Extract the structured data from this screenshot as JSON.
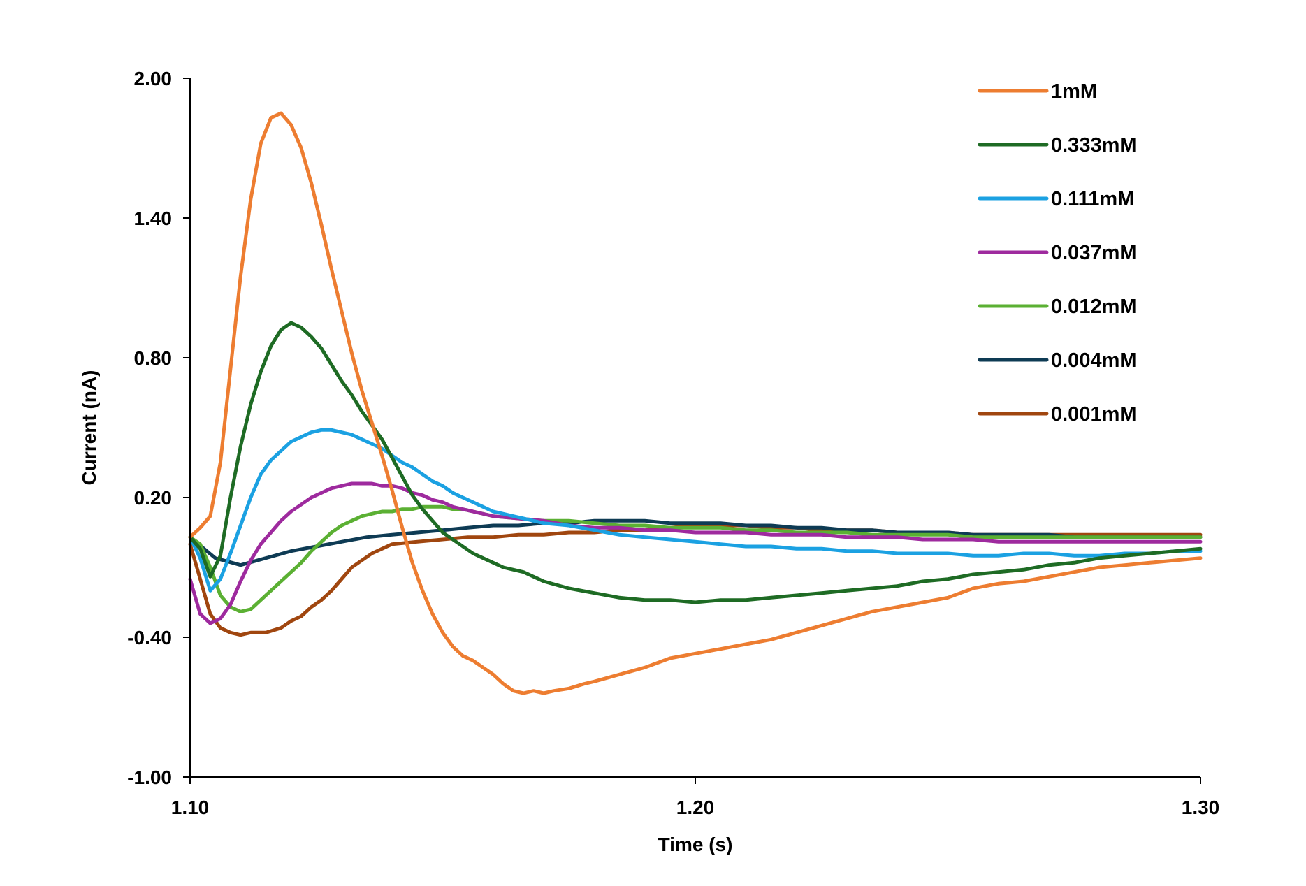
{
  "chart_data": {
    "type": "line",
    "title": "",
    "xlabel": "Time (s)",
    "ylabel": "Current (nA)",
    "xlim": [
      1.1,
      1.3
    ],
    "ylim": [
      -1.0,
      2.0
    ],
    "x_ticks": [
      "1.10",
      "1.20",
      "1.30"
    ],
    "y_ticks": [
      "2.00",
      "1.40",
      "0.80",
      "0.20",
      "-0.40",
      "-1.00"
    ],
    "grid": false,
    "legend_position": "top-right",
    "series": [
      {
        "name": "1mM",
        "color": "#ED7D31",
        "x": [
          1.1,
          1.102,
          1.104,
          1.106,
          1.108,
          1.11,
          1.112,
          1.114,
          1.116,
          1.118,
          1.12,
          1.122,
          1.124,
          1.126,
          1.128,
          1.13,
          1.132,
          1.134,
          1.136,
          1.138,
          1.14,
          1.142,
          1.144,
          1.146,
          1.148,
          1.15,
          1.152,
          1.154,
          1.156,
          1.158,
          1.16,
          1.162,
          1.164,
          1.166,
          1.168,
          1.17,
          1.172,
          1.175,
          1.178,
          1.18,
          1.185,
          1.19,
          1.195,
          1.2,
          1.205,
          1.21,
          1.215,
          1.22,
          1.225,
          1.23,
          1.235,
          1.24,
          1.245,
          1.25,
          1.255,
          1.26,
          1.265,
          1.27,
          1.275,
          1.28,
          1.285,
          1.29,
          1.295,
          1.3
        ],
        "y": [
          0.03,
          0.07,
          0.12,
          0.35,
          0.75,
          1.15,
          1.48,
          1.72,
          1.83,
          1.85,
          1.8,
          1.7,
          1.55,
          1.37,
          1.18,
          1.0,
          0.82,
          0.66,
          0.52,
          0.38,
          0.23,
          0.07,
          -0.08,
          -0.2,
          -0.3,
          -0.38,
          -0.44,
          -0.48,
          -0.5,
          -0.53,
          -0.56,
          -0.6,
          -0.63,
          -0.64,
          -0.63,
          -0.64,
          -0.63,
          -0.62,
          -0.6,
          -0.59,
          -0.56,
          -0.53,
          -0.49,
          -0.47,
          -0.45,
          -0.43,
          -0.41,
          -0.38,
          -0.35,
          -0.32,
          -0.29,
          -0.27,
          -0.25,
          -0.23,
          -0.19,
          -0.17,
          -0.16,
          -0.14,
          -0.12,
          -0.1,
          -0.09,
          -0.08,
          -0.07,
          -0.06
        ]
      },
      {
        "name": "0.333mM",
        "color": "#1E6B24",
        "x": [
          1.1,
          1.102,
          1.104,
          1.106,
          1.108,
          1.11,
          1.112,
          1.114,
          1.116,
          1.118,
          1.12,
          1.122,
          1.124,
          1.126,
          1.128,
          1.13,
          1.132,
          1.134,
          1.136,
          1.138,
          1.14,
          1.142,
          1.144,
          1.146,
          1.148,
          1.15,
          1.152,
          1.154,
          1.156,
          1.158,
          1.16,
          1.162,
          1.164,
          1.166,
          1.168,
          1.17,
          1.175,
          1.18,
          1.185,
          1.19,
          1.195,
          1.2,
          1.205,
          1.21,
          1.215,
          1.22,
          1.225,
          1.23,
          1.235,
          1.24,
          1.245,
          1.25,
          1.255,
          1.26,
          1.265,
          1.27,
          1.275,
          1.28,
          1.285,
          1.29,
          1.295,
          1.3
        ],
        "y": [
          0.03,
          -0.02,
          -0.14,
          -0.05,
          0.2,
          0.42,
          0.6,
          0.74,
          0.85,
          0.92,
          0.95,
          0.93,
          0.89,
          0.84,
          0.77,
          0.7,
          0.64,
          0.57,
          0.51,
          0.45,
          0.37,
          0.29,
          0.21,
          0.15,
          0.1,
          0.05,
          0.02,
          -0.01,
          -0.04,
          -0.06,
          -0.08,
          -0.1,
          -0.11,
          -0.12,
          -0.14,
          -0.16,
          -0.19,
          -0.21,
          -0.23,
          -0.24,
          -0.24,
          -0.25,
          -0.24,
          -0.24,
          -0.23,
          -0.22,
          -0.21,
          -0.2,
          -0.19,
          -0.18,
          -0.16,
          -0.15,
          -0.13,
          -0.12,
          -0.11,
          -0.09,
          -0.08,
          -0.06,
          -0.05,
          -0.04,
          -0.03,
          -0.02
        ]
      },
      {
        "name": "0.111mM",
        "color": "#1BA1E2",
        "x": [
          1.1,
          1.102,
          1.104,
          1.106,
          1.108,
          1.11,
          1.112,
          1.114,
          1.116,
          1.118,
          1.12,
          1.122,
          1.124,
          1.126,
          1.128,
          1.13,
          1.132,
          1.134,
          1.136,
          1.138,
          1.14,
          1.142,
          1.144,
          1.146,
          1.148,
          1.15,
          1.152,
          1.154,
          1.156,
          1.158,
          1.16,
          1.162,
          1.164,
          1.166,
          1.168,
          1.17,
          1.175,
          1.18,
          1.185,
          1.19,
          1.195,
          1.2,
          1.205,
          1.21,
          1.215,
          1.22,
          1.225,
          1.23,
          1.235,
          1.24,
          1.245,
          1.25,
          1.255,
          1.26,
          1.265,
          1.27,
          1.275,
          1.28,
          1.285,
          1.29,
          1.295,
          1.3
        ],
        "y": [
          0.03,
          -0.06,
          -0.2,
          -0.15,
          -0.04,
          0.08,
          0.2,
          0.3,
          0.36,
          0.4,
          0.44,
          0.46,
          0.48,
          0.49,
          0.49,
          0.48,
          0.47,
          0.45,
          0.43,
          0.41,
          0.38,
          0.35,
          0.33,
          0.3,
          0.27,
          0.25,
          0.22,
          0.2,
          0.18,
          0.16,
          0.14,
          0.13,
          0.12,
          0.11,
          0.1,
          0.09,
          0.08,
          0.06,
          0.04,
          0.03,
          0.02,
          0.01,
          0.0,
          -0.01,
          -0.01,
          -0.02,
          -0.02,
          -0.03,
          -0.03,
          -0.04,
          -0.04,
          -0.04,
          -0.05,
          -0.05,
          -0.04,
          -0.04,
          -0.05,
          -0.05,
          -0.04,
          -0.04,
          -0.03,
          -0.03
        ]
      },
      {
        "name": "0.037mM",
        "color": "#9E2A9E",
        "x": [
          1.1,
          1.102,
          1.104,
          1.106,
          1.108,
          1.11,
          1.112,
          1.114,
          1.116,
          1.118,
          1.12,
          1.122,
          1.124,
          1.126,
          1.128,
          1.13,
          1.132,
          1.134,
          1.136,
          1.138,
          1.14,
          1.142,
          1.144,
          1.146,
          1.148,
          1.15,
          1.152,
          1.154,
          1.156,
          1.158,
          1.16,
          1.165,
          1.17,
          1.175,
          1.18,
          1.185,
          1.19,
          1.195,
          1.2,
          1.205,
          1.21,
          1.215,
          1.22,
          1.225,
          1.23,
          1.235,
          1.24,
          1.245,
          1.25,
          1.255,
          1.26,
          1.265,
          1.27,
          1.275,
          1.28,
          1.285,
          1.29,
          1.295,
          1.3
        ],
        "y": [
          -0.15,
          -0.3,
          -0.34,
          -0.32,
          -0.26,
          -0.16,
          -0.07,
          0.0,
          0.05,
          0.1,
          0.14,
          0.17,
          0.2,
          0.22,
          0.24,
          0.25,
          0.26,
          0.26,
          0.26,
          0.25,
          0.25,
          0.24,
          0.22,
          0.21,
          0.19,
          0.18,
          0.16,
          0.15,
          0.14,
          0.13,
          0.12,
          0.11,
          0.1,
          0.08,
          0.07,
          0.07,
          0.06,
          0.06,
          0.05,
          0.05,
          0.05,
          0.04,
          0.04,
          0.04,
          0.03,
          0.03,
          0.03,
          0.02,
          0.02,
          0.02,
          0.01,
          0.01,
          0.01,
          0.01,
          0.01,
          0.01,
          0.01,
          0.01,
          0.01
        ]
      },
      {
        "name": "0.012mM",
        "color": "#5BB033",
        "x": [
          1.1,
          1.102,
          1.104,
          1.106,
          1.108,
          1.11,
          1.112,
          1.114,
          1.116,
          1.118,
          1.12,
          1.122,
          1.124,
          1.126,
          1.128,
          1.13,
          1.132,
          1.134,
          1.136,
          1.138,
          1.14,
          1.142,
          1.144,
          1.146,
          1.148,
          1.15,
          1.152,
          1.154,
          1.156,
          1.158,
          1.16,
          1.165,
          1.17,
          1.175,
          1.18,
          1.185,
          1.19,
          1.195,
          1.2,
          1.205,
          1.21,
          1.215,
          1.22,
          1.225,
          1.23,
          1.235,
          1.24,
          1.245,
          1.25,
          1.255,
          1.26,
          1.265,
          1.27,
          1.275,
          1.28,
          1.285,
          1.29,
          1.295,
          1.3
        ],
        "y": [
          0.03,
          0.0,
          -0.1,
          -0.22,
          -0.27,
          -0.29,
          -0.28,
          -0.24,
          -0.2,
          -0.16,
          -0.12,
          -0.08,
          -0.03,
          0.01,
          0.05,
          0.08,
          0.1,
          0.12,
          0.13,
          0.14,
          0.14,
          0.15,
          0.15,
          0.16,
          0.16,
          0.16,
          0.15,
          0.15,
          0.14,
          0.13,
          0.12,
          0.11,
          0.1,
          0.1,
          0.09,
          0.08,
          0.08,
          0.07,
          0.07,
          0.07,
          0.06,
          0.06,
          0.05,
          0.05,
          0.05,
          0.04,
          0.04,
          0.04,
          0.04,
          0.03,
          0.03,
          0.03,
          0.03,
          0.03,
          0.03,
          0.03,
          0.03,
          0.03,
          0.03
        ]
      },
      {
        "name": "0.004mM",
        "color": "#0E3B54",
        "x": [
          1.1,
          1.105,
          1.11,
          1.115,
          1.12,
          1.125,
          1.13,
          1.135,
          1.14,
          1.145,
          1.15,
          1.155,
          1.16,
          1.165,
          1.17,
          1.175,
          1.18,
          1.185,
          1.19,
          1.195,
          1.2,
          1.205,
          1.21,
          1.215,
          1.22,
          1.225,
          1.23,
          1.235,
          1.24,
          1.245,
          1.25,
          1.255,
          1.26,
          1.265,
          1.27,
          1.275,
          1.28,
          1.285,
          1.29,
          1.295,
          1.3
        ],
        "y": [
          0.03,
          -0.06,
          -0.09,
          -0.06,
          -0.03,
          -0.01,
          0.01,
          0.03,
          0.04,
          0.05,
          0.06,
          0.07,
          0.08,
          0.08,
          0.09,
          0.09,
          0.1,
          0.1,
          0.1,
          0.09,
          0.09,
          0.09,
          0.08,
          0.08,
          0.07,
          0.07,
          0.06,
          0.06,
          0.05,
          0.05,
          0.05,
          0.04,
          0.04,
          0.04,
          0.04,
          0.03,
          0.03,
          0.03,
          0.03,
          0.03,
          0.03
        ]
      },
      {
        "name": "0.001mM",
        "color": "#A0460F",
        "x": [
          1.1,
          1.102,
          1.104,
          1.106,
          1.108,
          1.11,
          1.112,
          1.115,
          1.118,
          1.12,
          1.122,
          1.124,
          1.126,
          1.128,
          1.13,
          1.132,
          1.134,
          1.136,
          1.138,
          1.14,
          1.145,
          1.15,
          1.155,
          1.16,
          1.165,
          1.17,
          1.175,
          1.18,
          1.185,
          1.19,
          1.195,
          1.2,
          1.205,
          1.21,
          1.215,
          1.22,
          1.225,
          1.23,
          1.235,
          1.24,
          1.245,
          1.25,
          1.255,
          1.26,
          1.265,
          1.27,
          1.275,
          1.28,
          1.285,
          1.29,
          1.295,
          1.3
        ],
        "y": [
          0.0,
          -0.15,
          -0.3,
          -0.36,
          -0.38,
          -0.39,
          -0.38,
          -0.38,
          -0.36,
          -0.33,
          -0.31,
          -0.27,
          -0.24,
          -0.2,
          -0.15,
          -0.1,
          -0.07,
          -0.04,
          -0.02,
          0.0,
          0.01,
          0.02,
          0.03,
          0.03,
          0.04,
          0.04,
          0.05,
          0.05,
          0.06,
          0.06,
          0.07,
          0.08,
          0.08,
          0.08,
          0.07,
          0.07,
          0.06,
          0.06,
          0.06,
          0.05,
          0.05,
          0.05,
          0.04,
          0.04,
          0.04,
          0.04,
          0.04,
          0.04,
          0.04,
          0.04,
          0.04,
          0.04
        ]
      }
    ]
  }
}
